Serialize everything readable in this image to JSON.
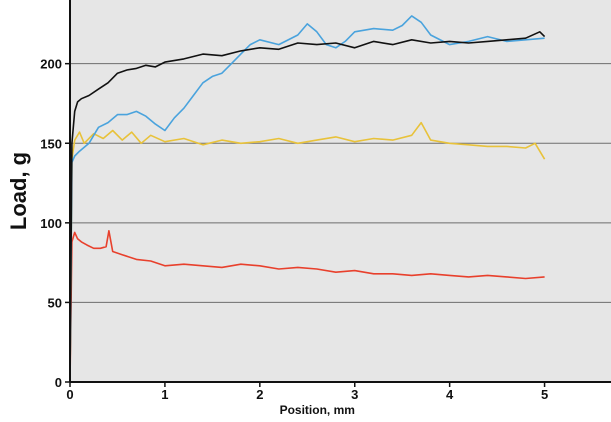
{
  "chart_data": {
    "type": "line",
    "title": "",
    "xlabel": "Position, mm",
    "ylabel": "Load, g",
    "xlim": [
      0,
      5.7
    ],
    "ylim": [
      0,
      240
    ],
    "xticks": [
      0,
      1,
      2,
      3,
      4,
      5
    ],
    "yticks": [
      0,
      50,
      100,
      150,
      200
    ],
    "grid": "horizontal",
    "legend": "none",
    "colors": {
      "background": "#e6e6e6",
      "gridline": "#6e6e6e",
      "axis": "#111111"
    },
    "series": [
      {
        "color": "#e8402c",
        "x": [
          0,
          0.02,
          0.05,
          0.08,
          0.12,
          0.18,
          0.25,
          0.32,
          0.38,
          0.41,
          0.45,
          0.55,
          0.7,
          0.85,
          1.0,
          1.2,
          1.4,
          1.6,
          1.8,
          2.0,
          2.2,
          2.4,
          2.6,
          2.8,
          3.0,
          3.2,
          3.4,
          3.6,
          3.8,
          4.0,
          4.2,
          4.4,
          4.6,
          4.8,
          5.0
        ],
        "y": [
          0,
          88,
          94,
          90,
          88,
          86,
          84,
          84,
          85,
          95,
          82,
          80,
          77,
          76,
          73,
          74,
          73,
          72,
          74,
          73,
          71,
          72,
          71,
          69,
          70,
          68,
          68,
          67,
          68,
          67,
          66,
          67,
          66,
          65,
          66
        ]
      },
      {
        "color": "#e8c23a",
        "x": [
          0,
          0.02,
          0.05,
          0.1,
          0.15,
          0.25,
          0.35,
          0.45,
          0.55,
          0.65,
          0.75,
          0.85,
          1.0,
          1.2,
          1.4,
          1.6,
          1.8,
          2.0,
          2.2,
          2.4,
          2.6,
          2.8,
          3.0,
          3.2,
          3.4,
          3.6,
          3.7,
          3.8,
          4.0,
          4.2,
          4.4,
          4.6,
          4.8,
          4.9,
          5.0
        ],
        "y": [
          0,
          140,
          152,
          157,
          150,
          156,
          153,
          158,
          152,
          157,
          150,
          155,
          151,
          153,
          149,
          152,
          150,
          151,
          153,
          150,
          152,
          154,
          151,
          153,
          152,
          155,
          163,
          152,
          150,
          149,
          148,
          148,
          147,
          150,
          140
        ]
      },
      {
        "color": "#4aa3dd",
        "x": [
          0,
          0.02,
          0.05,
          0.1,
          0.2,
          0.3,
          0.4,
          0.5,
          0.6,
          0.7,
          0.8,
          0.9,
          1.0,
          1.1,
          1.2,
          1.3,
          1.4,
          1.5,
          1.6,
          1.7,
          1.8,
          1.9,
          2.0,
          2.2,
          2.4,
          2.5,
          2.6,
          2.7,
          2.8,
          2.9,
          3.0,
          3.2,
          3.4,
          3.5,
          3.6,
          3.7,
          3.8,
          4.0,
          4.2,
          4.4,
          4.6,
          4.8,
          5.0
        ],
        "y": [
          0,
          138,
          142,
          145,
          150,
          160,
          163,
          168,
          168,
          170,
          167,
          162,
          158,
          166,
          172,
          180,
          188,
          192,
          194,
          200,
          206,
          212,
          215,
          212,
          218,
          225,
          220,
          212,
          210,
          214,
          220,
          222,
          221,
          224,
          230,
          226,
          218,
          212,
          214,
          217,
          214,
          215,
          216
        ]
      },
      {
        "color": "#111111",
        "x": [
          0,
          0.02,
          0.05,
          0.08,
          0.12,
          0.2,
          0.3,
          0.4,
          0.5,
          0.6,
          0.7,
          0.8,
          0.9,
          1.0,
          1.2,
          1.4,
          1.6,
          1.8,
          2.0,
          2.2,
          2.4,
          2.6,
          2.8,
          3.0,
          3.2,
          3.4,
          3.6,
          3.8,
          4.0,
          4.2,
          4.4,
          4.6,
          4.8,
          4.95,
          5.0
        ],
        "y": [
          0,
          150,
          170,
          176,
          178,
          180,
          184,
          188,
          194,
          196,
          197,
          199,
          198,
          201,
          203,
          206,
          205,
          208,
          210,
          209,
          213,
          212,
          213,
          210,
          214,
          212,
          215,
          213,
          214,
          213,
          214,
          215,
          216,
          220,
          217
        ]
      }
    ]
  }
}
